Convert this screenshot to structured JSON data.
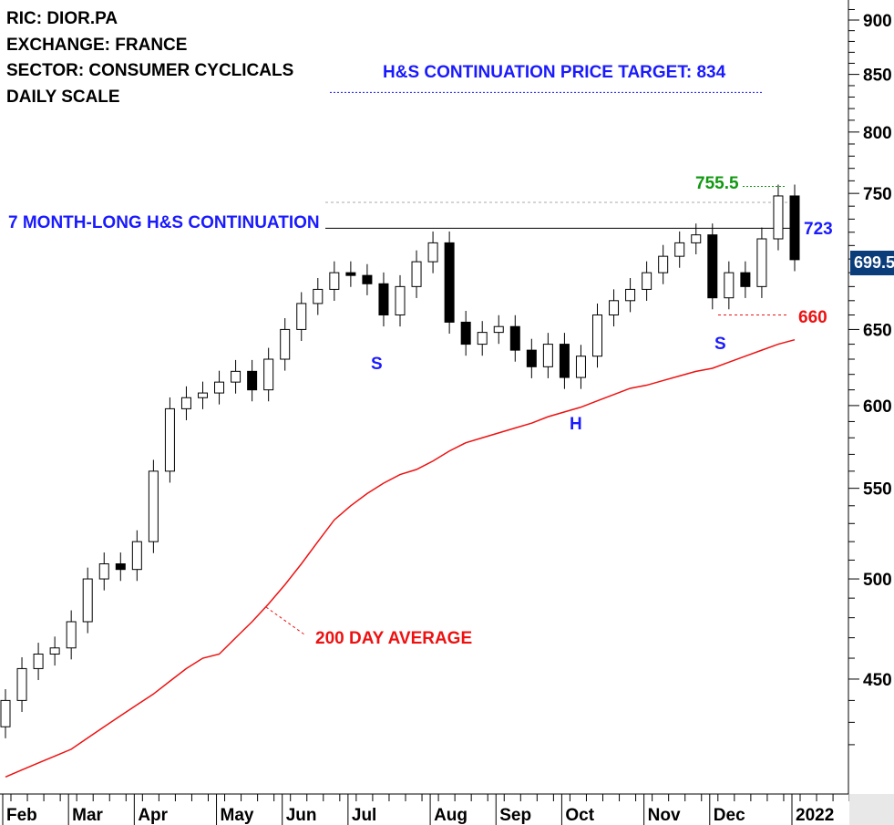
{
  "header": {
    "ric": "RIC: DIOR.PA",
    "exchange": "EXCHANGE: FRANCE",
    "sector": "SECTOR: CONSUMER CYCLICALS",
    "scale": "DAILY SCALE"
  },
  "annotations": {
    "target": "H&S CONTINUATION PRICE TARGET: 834",
    "pattern": "7 MONTH-LONG H&S CONTINUATION",
    "high": "755.5",
    "neckline": "723",
    "support": "660",
    "ma_label": "200 DAY AVERAGE",
    "left_shoulder": "S",
    "head": "H",
    "right_shoulder": "S",
    "last_price": "699.5"
  },
  "colors": {
    "blue": "#1a1aff",
    "green": "#119911",
    "red": "#ee1111",
    "navy": "#0b3d7a"
  },
  "chart_data": {
    "type": "candlestick",
    "title": "DIOR.PA daily",
    "yscale": "log",
    "ylim": [
      405,
      920
    ],
    "yticks": [
      450,
      500,
      550,
      600,
      650,
      700,
      750,
      800,
      850,
      900
    ],
    "ytick_labels": [
      "450",
      "500",
      "550",
      "600",
      "650",
      "",
      "750",
      "800",
      "850",
      "900"
    ],
    "xtick_labels": [
      "Feb",
      "Mar",
      "Apr",
      "May",
      "Jun",
      "Jul",
      "Aug",
      "Sep",
      "Oct",
      "Nov",
      "Dec",
      "2022"
    ],
    "month_start_index": [
      0,
      4,
      8,
      13,
      17,
      21,
      26,
      30,
      34,
      39,
      43,
      48
    ],
    "closes": [
      440,
      455,
      462,
      465,
      478,
      500,
      508,
      505,
      520,
      560,
      598,
      605,
      608,
      615,
      622,
      610,
      630,
      650,
      668,
      678,
      690,
      688,
      682,
      660,
      680,
      698,
      712,
      655,
      640,
      648,
      652,
      636,
      625,
      640,
      618,
      632,
      660,
      670,
      678,
      690,
      702,
      712,
      718,
      672,
      690,
      680,
      715,
      748,
      699.5
    ],
    "ma200": [
      406,
      409,
      412,
      415,
      418,
      423,
      428,
      433,
      438,
      443,
      449,
      455,
      460,
      462,
      470,
      478,
      487,
      497,
      508,
      520,
      532,
      540,
      547,
      553,
      558,
      561,
      566,
      572,
      577,
      580,
      583,
      586,
      589,
      593,
      596,
      599,
      603,
      607,
      611,
      613,
      616,
      619,
      622,
      624,
      628,
      632,
      636,
      640,
      643
    ],
    "levels": {
      "target": 834,
      "neckline": 723,
      "prior_high": 743,
      "high": 755.5,
      "support": 660
    }
  }
}
